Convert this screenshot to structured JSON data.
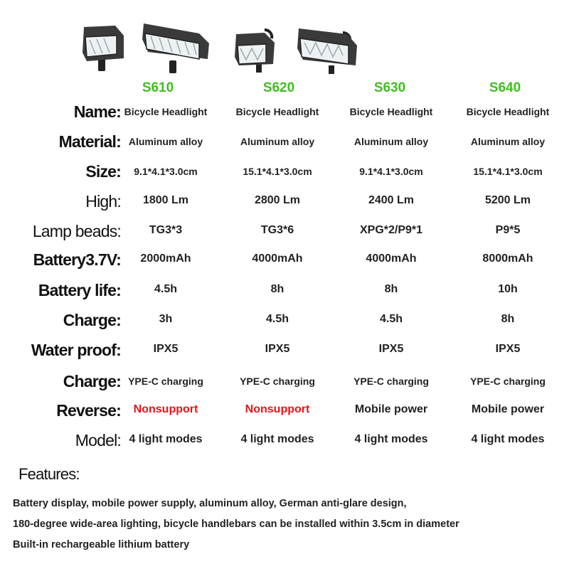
{
  "products": [
    {
      "model": "S610"
    },
    {
      "model": "S620"
    },
    {
      "model": "S630"
    },
    {
      "model": "S640"
    }
  ],
  "accent_color": "#3fbf1f",
  "warning_color": "#e4141a",
  "rows": [
    {
      "label": "Name:",
      "values": [
        "Bicycle Headlight",
        "Bicycle Headlight",
        "Bicycle Headlight",
        "Bicycle Headlight"
      ]
    },
    {
      "label": "Material:",
      "values": [
        "Aluminum alloy",
        "Aluminum alloy",
        "Aluminum alloy",
        "Aluminum alloy"
      ]
    },
    {
      "label": "Size:",
      "values": [
        "9.1*4.1*3.0cm",
        "15.1*4.1*3.0cm",
        "9.1*4.1*3.0cm",
        "15.1*4.1*3.0cm"
      ]
    },
    {
      "label": "High:",
      "values": [
        "1800 Lm",
        "2800 Lm",
        "2400 Lm",
        "5200 Lm"
      ]
    },
    {
      "label": "Lamp beads:",
      "values": [
        "TG3*3",
        "TG3*6",
        "XPG*2/P9*1",
        "P9*5"
      ]
    },
    {
      "label": "Battery3.7V:",
      "values": [
        "2000mAh",
        "4000mAh",
        "4000mAh",
        "8000mAh"
      ]
    },
    {
      "label": "Battery life:",
      "values": [
        "4.5h",
        "8h",
        "8h",
        "10h"
      ]
    },
    {
      "label": "Charge:",
      "values": [
        "3h",
        "4.5h",
        "4.5h",
        "8h"
      ]
    },
    {
      "label": "Water proof:",
      "values": [
        "IPX5",
        "IPX5",
        "IPX5",
        "IPX5"
      ]
    },
    {
      "label": "Charge:",
      "values": [
        "YPE-C charging",
        "YPE-C charging",
        "YPE-C charging",
        "YPE-C charging"
      ]
    },
    {
      "label": "Reverse:",
      "values": [
        "Nonsupport",
        "Nonsupport",
        "Mobile power",
        "Mobile power"
      ]
    },
    {
      "label": "Model:",
      "values": [
        "4 light modes",
        "4 light modes",
        "4 light modes",
        "4 light modes"
      ]
    }
  ],
  "features": {
    "title": "Features:",
    "lines": [
      "Battery display, mobile power supply, aluminum alloy, German anti-glare design,",
      " 180-degree wide-area lighting, bicycle handlebars can be installed within 3.5cm in diameter",
      "Built-in rechargeable lithium battery"
    ]
  }
}
